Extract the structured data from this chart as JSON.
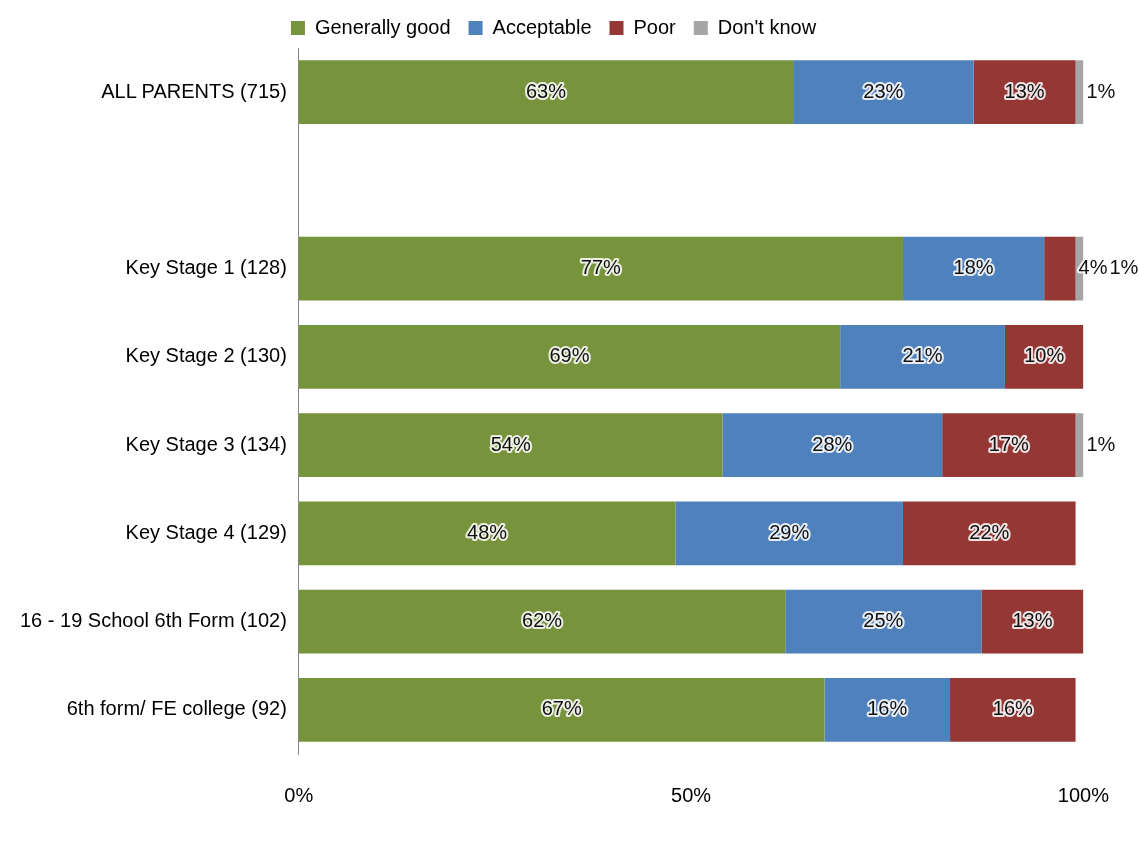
{
  "chart_data": {
    "type": "bar",
    "orientation": "horizontal",
    "stacked": true,
    "categories": [
      "ALL PARENTS (715)",
      null,
      "Key Stage 1 (128)",
      "Key Stage 2 (130)",
      "Key Stage 3 (134)",
      "Key Stage 4 (129)",
      "16 - 19 School 6th Form (102)",
      "6th form/ FE college (92)"
    ],
    "series": [
      {
        "name": "Generally good",
        "color": "#77933c",
        "values": [
          63,
          null,
          77,
          69,
          54,
          48,
          62,
          67
        ],
        "value_labels": [
          "63%",
          null,
          "77%",
          "69%",
          "54%",
          "48%",
          "62%",
          "67%"
        ]
      },
      {
        "name": "Acceptable",
        "color": "#4f81bd",
        "values": [
          23,
          null,
          18,
          21,
          28,
          29,
          25,
          16
        ],
        "value_labels": [
          "23%",
          null,
          "18%",
          "21%",
          "28%",
          "29%",
          "25%",
          "16%"
        ]
      },
      {
        "name": "Poor",
        "color": "#953735",
        "values": [
          13,
          null,
          4,
          10,
          17,
          22,
          13,
          16
        ],
        "value_labels": [
          "13%",
          null,
          "4%",
          "10%",
          "17%",
          "22%",
          "13%",
          "16%"
        ]
      },
      {
        "name": "Don't know",
        "color": "#a6a6a6",
        "values": [
          1,
          null,
          1,
          null,
          1,
          null,
          null,
          null
        ],
        "value_labels": [
          "1%",
          null,
          "1%",
          null,
          "1%",
          null,
          null,
          null
        ]
      }
    ],
    "xlim": [
      0,
      100
    ],
    "xticks": [
      {
        "value": 0,
        "label": "0%"
      },
      {
        "value": 50,
        "label": "50%"
      },
      {
        "value": 100,
        "label": "100%"
      }
    ],
    "grid": false,
    "legend": "top"
  }
}
